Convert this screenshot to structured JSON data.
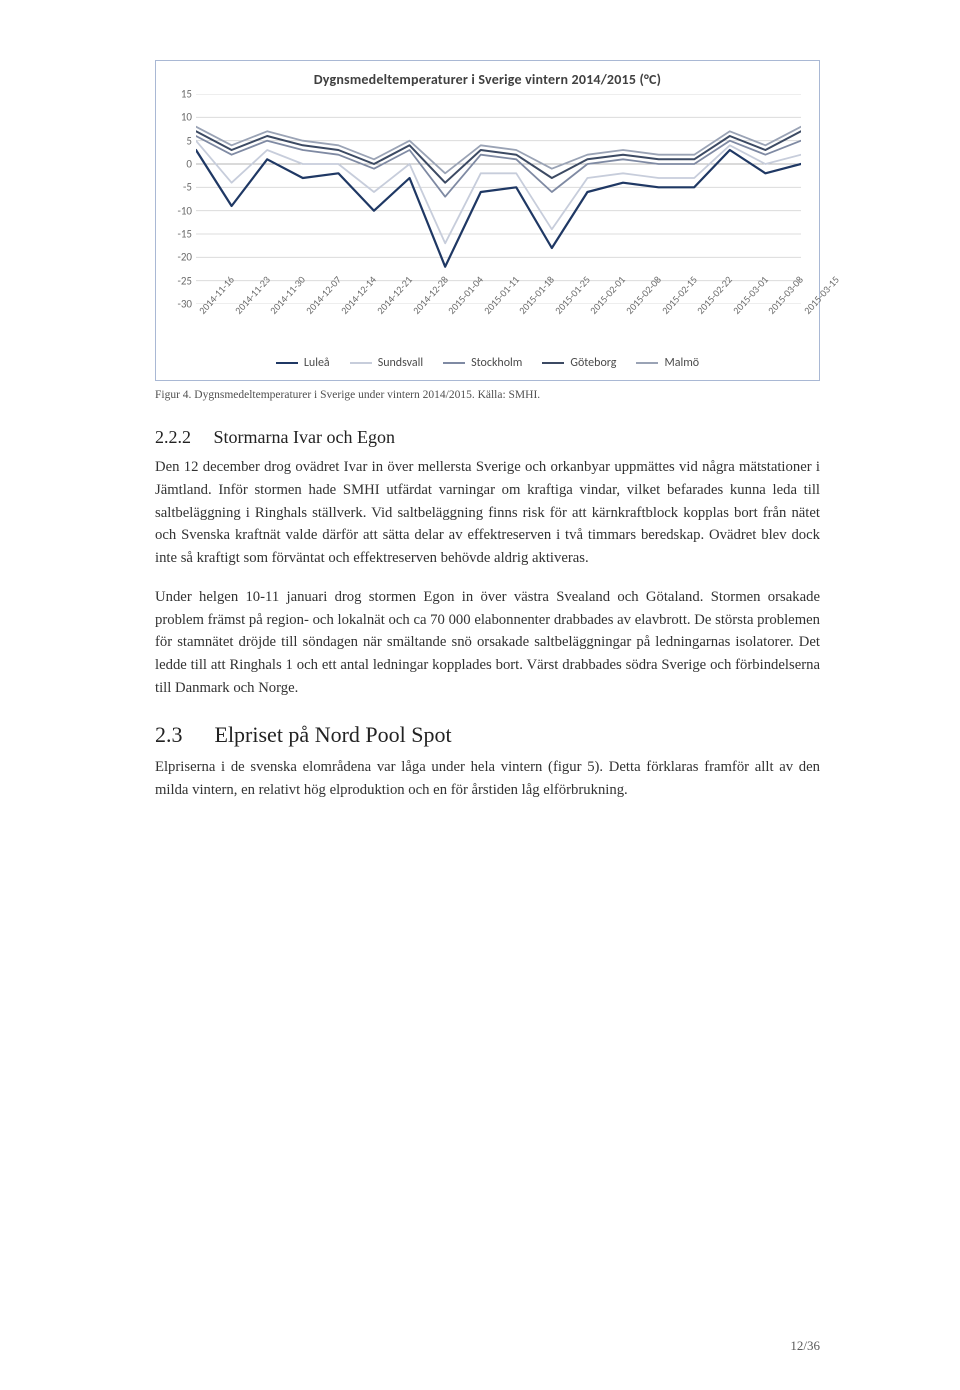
{
  "chart": {
    "type": "line",
    "title": "Dygnsmedeltemperaturer i Sverige vintern 2014/2015 (°C)",
    "y": {
      "min": -30,
      "max": 15,
      "step": 5,
      "ticks": [
        15,
        10,
        5,
        0,
        -5,
        -10,
        -15,
        -20,
        -25,
        -30
      ]
    },
    "x_labels": [
      "2014-11-16",
      "2014-11-23",
      "2014-11-30",
      "2014-12-07",
      "2014-12-14",
      "2014-12-21",
      "2014-12-28",
      "2015-01-04",
      "2015-01-11",
      "2015-01-18",
      "2015-01-25",
      "2015-02-01",
      "2015-02-08",
      "2015-02-15",
      "2015-02-22",
      "2015-03-01",
      "2015-03-08",
      "2015-03-15"
    ],
    "x_label_fontsize": 10,
    "y_label_fontsize": 11,
    "title_fontsize": 14,
    "grid_color": "#dcdcdc",
    "axis_color": "#b5b5b5",
    "background_color": "#ffffff",
    "series": [
      {
        "name": "Luleå",
        "color": "#1f3864",
        "width": 2.2,
        "values": [
          3,
          -9,
          1,
          -3,
          -2,
          -10,
          -3,
          -22,
          -6,
          -5,
          -18,
          -6,
          -4,
          -5,
          -5,
          3,
          -2,
          0
        ]
      },
      {
        "name": "Sundsvall",
        "color": "#c7cddb",
        "width": 1.8,
        "values": [
          5,
          -4,
          3,
          0,
          0,
          -6,
          0,
          -17,
          -2,
          -2,
          -14,
          -3,
          -2,
          -3,
          -3,
          4,
          0,
          2
        ]
      },
      {
        "name": "Stockholm",
        "color": "#7f8aa3",
        "width": 1.8,
        "values": [
          6,
          2,
          5,
          3,
          2,
          -1,
          3,
          -7,
          2,
          1,
          -6,
          0,
          1,
          0,
          0,
          5,
          2,
          5
        ]
      },
      {
        "name": "Göteborg",
        "color": "#3c4a63",
        "width": 2.0,
        "values": [
          7,
          3,
          6,
          4,
          3,
          0,
          4,
          -4,
          3,
          2,
          -3,
          1,
          2,
          1,
          1,
          6,
          3,
          7
        ]
      },
      {
        "name": "Malmö",
        "color": "#9aa3b5",
        "width": 1.8,
        "values": [
          8,
          4,
          7,
          5,
          4,
          1,
          5,
          -2,
          4,
          3,
          -1,
          2,
          3,
          2,
          2,
          7,
          4,
          8
        ]
      }
    ],
    "legend": [
      "Luleå",
      "Sundsvall",
      "Stockholm",
      "Göteborg",
      "Malmö"
    ]
  },
  "figure_caption": "Figur 4. Dygnsmedeltemperaturer i Sverige under vintern 2014/2015. Källa: SMHI.",
  "sections": {
    "sub_num": "2.2.2",
    "sub_title": "Stormarna Ivar och Egon",
    "sub_p1": "Den 12 december drog ovädret Ivar in över mellersta Sverige och orkanbyar uppmättes vid några mätstationer i Jämtland. Inför stormen hade SMHI utfärdat varningar om kraftiga vindar, vilket befarades kunna leda till saltbeläggning i Ringhals ställverk. Vid saltbeläggning finns risk för att kärnkraftblock kopplas bort från nätet och Svenska kraftnät valde därför att sätta delar av effektreserven i två timmars beredskap. Ovädret blev dock inte så kraftigt som förväntat och effektreserven behövde aldrig aktiveras.",
    "sub_p2": "Under helgen 10-11 januari drog stormen Egon in över västra Svealand och Götaland. Stormen orsakade problem främst på region- och lokalnät och ca 70 000 elabonnenter drabbades av elavbrott. De största problemen för stamnätet dröjde till söndagen när smältande snö orsakade saltbeläggningar på ledningarnas isolatorer. Det ledde till att Ringhals 1 och ett antal ledningar kopplades bort. Värst drabbades södra Sverige och förbindelserna till Danmark och Norge.",
    "main_num": "2.3",
    "main_title": "Elpriset på Nord Pool Spot",
    "main_p1": "Elpriserna i de svenska elområdena var låga under hela vintern (figur 5). Detta förklaras framför allt av den milda vintern, en relativt hög elproduktion och en för årstiden låg elförbrukning."
  },
  "page_number": "12/36"
}
